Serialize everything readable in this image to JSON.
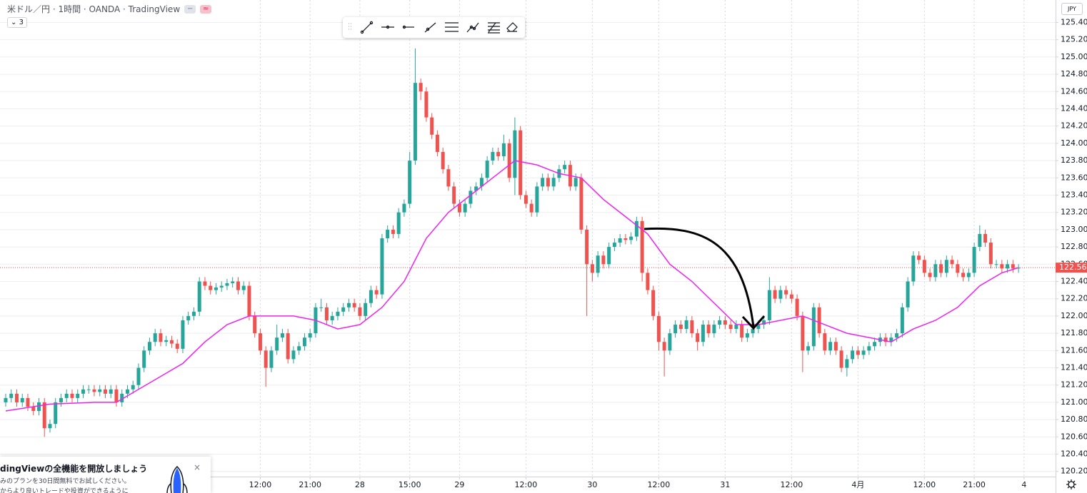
{
  "header": {
    "title": "米ドル／円 · 1時間 · OANDA · TradingView",
    "indicator_toggle": "3",
    "currency": "JPY"
  },
  "promo": {
    "title": "dingViewの全機能を開放しましょう",
    "line1": "みのプランを30日間無料でお試しください。",
    "line2": "からより良いトレードや投資ができるように",
    "close": "×"
  },
  "chart_data": {
    "type": "candlestick",
    "xlim": [
      -1.03,
      189.7
    ],
    "xticks": [
      {
        "value": 46,
        "label": "12:00"
      },
      {
        "value": 55,
        "label": "21:00"
      },
      {
        "value": 64,
        "label": "28"
      },
      {
        "value": 73,
        "label": "15:00"
      },
      {
        "value": 82,
        "label": "29"
      },
      {
        "value": 94,
        "label": "12:00"
      },
      {
        "value": 106,
        "label": "30"
      },
      {
        "value": 118,
        "label": "12:00"
      },
      {
        "value": 130,
        "label": "31"
      },
      {
        "value": 142,
        "label": "12:00"
      },
      {
        "value": 154,
        "label": "4月"
      },
      {
        "value": 166,
        "label": "12:00"
      },
      {
        "value": 175,
        "label": "21:00"
      },
      {
        "value": 184,
        "label": "4"
      }
    ],
    "ylim": [
      120.14,
      125.66
    ],
    "yticks": [
      {
        "value": 120.2,
        "label": "120.200"
      },
      {
        "value": 120.4,
        "label": "120.400"
      },
      {
        "value": 120.6,
        "label": "120.600"
      },
      {
        "value": 120.8,
        "label": "120.800"
      },
      {
        "value": 121.0,
        "label": "121.000"
      },
      {
        "value": 121.2,
        "label": "121.200"
      },
      {
        "value": 121.4,
        "label": "121.400"
      },
      {
        "value": 121.6,
        "label": "121.600"
      },
      {
        "value": 121.8,
        "label": "121.800"
      },
      {
        "value": 122.0,
        "label": "122.000"
      },
      {
        "value": 122.2,
        "label": "122.200"
      },
      {
        "value": 122.4,
        "label": "122.400"
      },
      {
        "value": 122.6,
        "label": "122.600"
      },
      {
        "value": 122.8,
        "label": "122.800"
      },
      {
        "value": 123.0,
        "label": "123.000"
      },
      {
        "value": 123.2,
        "label": "123.200"
      },
      {
        "value": 123.4,
        "label": "123.400"
      },
      {
        "value": 123.6,
        "label": "123.600"
      },
      {
        "value": 123.8,
        "label": "123.800"
      },
      {
        "value": 124.0,
        "label": "124.000"
      },
      {
        "value": 124.2,
        "label": "124.200"
      },
      {
        "value": 124.4,
        "label": "124.400"
      },
      {
        "value": 124.6,
        "label": "124.600"
      },
      {
        "value": 124.8,
        "label": "124.800"
      },
      {
        "value": 125.0,
        "label": "125.000"
      },
      {
        "value": 125.2,
        "label": "125.200"
      },
      {
        "value": 125.4,
        "label": "125.400"
      }
    ],
    "grid": true,
    "up_color": "#26a69a",
    "down_color": "#ef5350",
    "last_price": {
      "value": 122.56,
      "label": "122.560",
      "color": "#ef5350"
    },
    "series": [
      {
        "type": "candlestick",
        "open": [
          121.0,
          121.05,
          121.1,
          121.0,
          121.05,
          120.95,
          120.9,
          121.0,
          120.7,
          120.75,
          121.0,
          121.05,
          121.1,
          121.05,
          121.1,
          121.15,
          121.15,
          121.12,
          121.15,
          121.1,
          121.15,
          121.0,
          121.1,
          121.15,
          121.2,
          121.4,
          121.6,
          121.7,
          121.8,
          121.7,
          121.72,
          121.68,
          121.62,
          121.95,
          122.0,
          122.05,
          122.4,
          122.35,
          122.3,
          122.33,
          122.35,
          122.38,
          122.4,
          122.3,
          122.35,
          122.0,
          121.8,
          121.6,
          121.4,
          121.6,
          121.75,
          121.8,
          121.5,
          121.6,
          121.65,
          121.75,
          121.8,
          122.1,
          122.1,
          121.95,
          122.0,
          122.05,
          122.1,
          122.15,
          122.1,
          122.0,
          122.15,
          122.3,
          122.25,
          122.9,
          123.0,
          122.95,
          123.2,
          123.3,
          123.8,
          124.7,
          124.6,
          124.3,
          124.1,
          123.9,
          123.7,
          123.5,
          123.3,
          123.2,
          123.3,
          123.45,
          123.5,
          123.6,
          123.8,
          123.9,
          123.85,
          124.0,
          123.6,
          124.15,
          123.4,
          123.3,
          123.2,
          123.5,
          123.6,
          123.5,
          123.6,
          123.7,
          123.75,
          123.5,
          123.6,
          123.0,
          122.6,
          122.5,
          122.7,
          122.6,
          122.8,
          122.85,
          122.9,
          122.88,
          122.92,
          123.1,
          122.5,
          122.3,
          122.0,
          121.7,
          121.6,
          121.8,
          121.9,
          121.85,
          121.95,
          121.8,
          121.7,
          121.9,
          121.8,
          121.9,
          121.95,
          121.9,
          121.85,
          121.9,
          121.75,
          121.8,
          121.85,
          121.9,
          121.95,
          122.3,
          122.2,
          122.3,
          122.25,
          122.2,
          122.0,
          121.6,
          121.65,
          122.1,
          121.8,
          121.6,
          121.7,
          121.6,
          121.4,
          121.5,
          121.6,
          121.55,
          121.6,
          121.65,
          121.7,
          121.75,
          121.7,
          121.75,
          121.8,
          122.1,
          122.4,
          122.7,
          122.65,
          122.5,
          122.45,
          122.6,
          122.5,
          122.65,
          122.6,
          122.5,
          122.45,
          122.5,
          122.8,
          122.95,
          122.85,
          122.6,
          122.6,
          122.55,
          122.6,
          122.55
        ],
        "high": [
          121.1,
          121.15,
          121.15,
          121.1,
          121.1,
          121.0,
          121.05,
          121.05,
          120.8,
          121.05,
          121.1,
          121.15,
          121.15,
          121.15,
          121.2,
          121.2,
          121.2,
          121.2,
          121.2,
          121.2,
          121.2,
          121.15,
          121.2,
          121.25,
          121.45,
          121.65,
          121.75,
          121.85,
          121.85,
          121.77,
          121.77,
          121.73,
          122.0,
          122.05,
          122.1,
          122.45,
          122.45,
          122.4,
          122.38,
          122.4,
          122.43,
          122.45,
          122.45,
          122.4,
          122.4,
          122.05,
          121.85,
          121.65,
          121.65,
          121.9,
          121.85,
          121.85,
          121.65,
          121.7,
          121.8,
          121.85,
          122.15,
          122.2,
          122.15,
          122.05,
          122.1,
          122.15,
          122.2,
          122.2,
          122.15,
          122.2,
          122.35,
          122.35,
          122.95,
          123.05,
          123.05,
          123.25,
          123.35,
          123.9,
          125.1,
          124.75,
          124.65,
          124.35,
          124.15,
          123.95,
          123.75,
          123.55,
          123.35,
          123.35,
          123.5,
          123.55,
          123.65,
          123.85,
          123.95,
          123.95,
          124.1,
          124.05,
          124.3,
          124.2,
          123.45,
          123.35,
          123.55,
          123.65,
          123.65,
          123.65,
          123.75,
          123.8,
          123.8,
          123.65,
          123.65,
          123.05,
          122.65,
          122.75,
          122.75,
          122.85,
          122.9,
          122.95,
          122.95,
          122.97,
          123.15,
          123.15,
          122.55,
          122.35,
          122.05,
          121.75,
          121.85,
          121.95,
          121.95,
          122.0,
          122.0,
          121.85,
          121.95,
          121.95,
          121.95,
          122.0,
          122.0,
          121.95,
          121.95,
          121.95,
          121.85,
          121.9,
          121.95,
          122.0,
          122.45,
          122.35,
          122.35,
          122.35,
          122.3,
          122.25,
          122.05,
          121.7,
          122.15,
          122.15,
          121.85,
          121.75,
          121.75,
          121.65,
          121.55,
          121.65,
          121.65,
          121.65,
          121.7,
          121.75,
          121.8,
          121.8,
          121.8,
          121.85,
          122.15,
          122.45,
          122.75,
          122.75,
          122.7,
          122.55,
          122.65,
          122.65,
          122.7,
          122.7,
          122.65,
          122.55,
          122.55,
          122.85,
          123.05,
          123.0,
          122.9,
          122.65,
          122.65,
          122.65,
          122.65,
          122.6
        ],
        "low": [
          120.95,
          121.0,
          120.95,
          120.95,
          120.9,
          120.85,
          120.85,
          120.6,
          120.65,
          120.7,
          120.95,
          121.0,
          121.0,
          121.0,
          121.05,
          121.1,
          121.07,
          121.07,
          121.05,
          121.05,
          120.95,
          120.95,
          121.05,
          121.1,
          121.15,
          121.35,
          121.55,
          121.65,
          121.65,
          121.65,
          121.63,
          121.57,
          121.57,
          121.9,
          121.95,
          122.0,
          122.3,
          122.25,
          122.25,
          122.28,
          122.3,
          122.33,
          122.25,
          122.25,
          121.95,
          121.75,
          121.55,
          121.18,
          121.35,
          121.55,
          121.7,
          121.45,
          121.45,
          121.55,
          121.6,
          121.7,
          121.75,
          122.05,
          121.9,
          121.9,
          121.95,
          122.0,
          122.05,
          122.05,
          121.95,
          121.95,
          122.1,
          122.2,
          122.2,
          122.85,
          122.9,
          122.9,
          123.15,
          123.25,
          123.75,
          124.5,
          124.25,
          124.05,
          123.85,
          123.65,
          123.45,
          123.25,
          123.15,
          123.15,
          123.25,
          123.4,
          123.45,
          123.55,
          123.75,
          123.8,
          123.8,
          123.55,
          123.4,
          123.35,
          123.25,
          123.15,
          123.15,
          123.45,
          123.45,
          123.45,
          123.55,
          123.65,
          123.45,
          123.45,
          122.95,
          122.0,
          122.4,
          122.45,
          122.55,
          122.55,
          122.75,
          122.8,
          122.83,
          122.83,
          122.87,
          122.4,
          122.25,
          121.95,
          121.6,
          121.3,
          121.55,
          121.75,
          121.8,
          121.8,
          121.75,
          121.6,
          121.65,
          121.75,
          121.75,
          121.85,
          121.85,
          121.8,
          121.8,
          121.7,
          121.7,
          121.75,
          121.8,
          121.85,
          121.9,
          122.15,
          122.15,
          122.2,
          122.15,
          121.95,
          121.35,
          121.55,
          121.6,
          121.75,
          121.55,
          121.55,
          121.55,
          121.35,
          121.3,
          121.45,
          121.5,
          121.5,
          121.55,
          121.6,
          121.65,
          121.65,
          121.65,
          121.7,
          121.75,
          122.05,
          122.35,
          122.6,
          122.45,
          122.4,
          122.4,
          122.45,
          122.45,
          122.55,
          122.45,
          122.4,
          122.4,
          122.45,
          122.75,
          122.8,
          122.55,
          122.55,
          122.5,
          122.5,
          122.5,
          122.5
        ],
        "close": [
          121.05,
          121.1,
          121.0,
          121.05,
          120.95,
          120.9,
          121.0,
          120.7,
          120.75,
          121.0,
          121.05,
          121.1,
          121.05,
          121.1,
          121.15,
          121.15,
          121.12,
          121.15,
          121.1,
          121.15,
          121.0,
          121.1,
          121.15,
          121.2,
          121.4,
          121.6,
          121.7,
          121.8,
          121.7,
          121.72,
          121.68,
          121.62,
          121.95,
          122.0,
          122.05,
          122.4,
          122.35,
          122.3,
          122.33,
          122.35,
          122.38,
          122.4,
          122.3,
          122.35,
          122.0,
          121.8,
          121.6,
          121.4,
          121.6,
          121.75,
          121.8,
          121.5,
          121.6,
          121.65,
          121.75,
          121.8,
          122.1,
          122.1,
          121.95,
          122.0,
          122.05,
          122.1,
          122.15,
          122.1,
          122.0,
          122.15,
          122.3,
          122.25,
          122.9,
          123.0,
          122.95,
          123.2,
          123.3,
          123.8,
          124.7,
          124.6,
          124.3,
          124.1,
          123.9,
          123.7,
          123.5,
          123.3,
          123.2,
          123.3,
          123.45,
          123.5,
          123.6,
          123.8,
          123.9,
          123.85,
          124.0,
          123.6,
          124.15,
          123.4,
          123.3,
          123.2,
          123.5,
          123.6,
          123.5,
          123.6,
          123.7,
          123.75,
          123.5,
          123.6,
          123.0,
          122.6,
          122.5,
          122.7,
          122.6,
          122.8,
          122.85,
          122.9,
          122.88,
          122.92,
          123.1,
          122.5,
          122.3,
          122.0,
          121.7,
          121.6,
          121.8,
          121.9,
          121.85,
          121.95,
          121.8,
          121.7,
          121.9,
          121.8,
          121.9,
          121.95,
          121.9,
          121.85,
          121.9,
          121.75,
          121.8,
          121.85,
          121.9,
          121.95,
          122.3,
          122.2,
          122.3,
          122.25,
          122.2,
          122.0,
          121.6,
          121.65,
          122.1,
          121.8,
          121.6,
          121.7,
          121.6,
          121.4,
          121.5,
          121.6,
          121.55,
          121.6,
          121.65,
          121.7,
          121.75,
          121.7,
          121.75,
          121.8,
          122.1,
          122.4,
          122.7,
          122.65,
          122.5,
          122.45,
          122.6,
          122.5,
          122.65,
          122.6,
          122.5,
          122.45,
          122.5,
          122.8,
          122.95,
          122.85,
          122.6,
          122.6,
          122.55,
          122.6,
          122.55,
          122.56
        ]
      },
      {
        "type": "line",
        "color": "#ee22ee",
        "x": [
          0,
          8,
          16,
          20,
          24,
          28,
          32,
          36,
          40,
          44,
          48,
          52,
          56,
          60,
          64,
          68,
          72,
          76,
          80,
          84,
          88,
          92,
          96,
          100,
          104,
          108,
          112,
          116,
          120,
          124,
          128,
          132,
          136,
          140,
          144,
          148,
          152,
          156,
          160,
          164,
          168,
          172,
          176,
          180,
          183
        ],
        "values": [
          120.9,
          120.98,
          121.0,
          121.0,
          121.15,
          121.3,
          121.45,
          121.7,
          121.9,
          122.0,
          122.0,
          122.0,
          121.95,
          121.85,
          121.9,
          122.1,
          122.4,
          122.9,
          123.2,
          123.4,
          123.6,
          123.8,
          123.75,
          123.65,
          123.6,
          123.35,
          123.15,
          122.95,
          122.6,
          122.4,
          122.15,
          121.9,
          121.9,
          121.95,
          122.0,
          121.9,
          121.8,
          121.75,
          121.7,
          121.85,
          121.95,
          122.1,
          122.35,
          122.5,
          122.56
        ]
      }
    ]
  }
}
